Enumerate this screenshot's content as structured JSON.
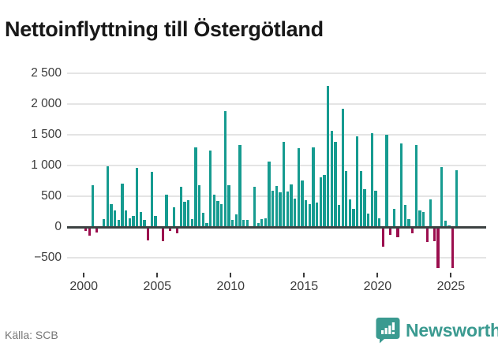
{
  "title": "Nettoinflyttning till Östergötland",
  "source": {
    "label": "Källa: SCB"
  },
  "branding": {
    "name": "Newsworthy",
    "icon": "newsworthy-speech-bubble-chart-icon"
  },
  "colors": {
    "positive_bar": "#169b90",
    "negative_bar": "#9b0e4e",
    "gridline": "#e4e4e4",
    "zero_line": "#3c4242",
    "axis_text": "#3c3c3c",
    "title_text": "#181818",
    "source_text": "#767676",
    "brand_teal": "#3a9a90"
  },
  "chart_data": {
    "type": "bar",
    "title": "Nettoinflyttning till Östergötland",
    "xlabel": "",
    "ylabel": "",
    "legend": "none",
    "grid": "horizontal",
    "ylim": [
      -750,
      2600
    ],
    "ytick_values": [
      2500,
      2000,
      1500,
      1000,
      500,
      0,
      -500
    ],
    "ytick_labels": [
      "2 500",
      "2 000",
      "1 500",
      "1 000",
      "500",
      "0",
      "−500"
    ],
    "xtick_years": [
      2000,
      2005,
      2010,
      2015,
      2020,
      2025
    ],
    "xtick_labels": [
      "2000",
      "2005",
      "2010",
      "2015",
      "2020",
      "2025"
    ],
    "x": [
      "2000 Q1",
      "2000 Q2",
      "2000 Q3",
      "2000 Q4",
      "2001 Q1",
      "2001 Q2",
      "2001 Q3",
      "2001 Q4",
      "2002 Q1",
      "2002 Q2",
      "2002 Q3",
      "2002 Q4",
      "2003 Q1",
      "2003 Q2",
      "2003 Q3",
      "2003 Q4",
      "2004 Q1",
      "2004 Q2",
      "2004 Q3",
      "2004 Q4",
      "2005 Q1",
      "2005 Q2",
      "2005 Q3",
      "2005 Q4",
      "2006 Q1",
      "2006 Q2",
      "2006 Q3",
      "2006 Q4",
      "2007 Q1",
      "2007 Q2",
      "2007 Q3",
      "2007 Q4",
      "2008 Q1",
      "2008 Q2",
      "2008 Q3",
      "2008 Q4",
      "2009 Q1",
      "2009 Q2",
      "2009 Q3",
      "2009 Q4",
      "2010 Q1",
      "2010 Q2",
      "2010 Q3",
      "2010 Q4",
      "2011 Q1",
      "2011 Q2",
      "2011 Q3",
      "2011 Q4",
      "2012 Q1",
      "2012 Q2",
      "2012 Q3",
      "2012 Q4",
      "2013 Q1",
      "2013 Q2",
      "2013 Q3",
      "2013 Q4",
      "2014 Q1",
      "2014 Q2",
      "2014 Q3",
      "2014 Q4",
      "2015 Q1",
      "2015 Q2",
      "2015 Q3",
      "2015 Q4",
      "2016 Q1",
      "2016 Q2",
      "2016 Q3",
      "2016 Q4",
      "2017 Q1",
      "2017 Q2",
      "2017 Q3",
      "2017 Q4",
      "2018 Q1",
      "2018 Q2",
      "2018 Q3",
      "2018 Q4",
      "2019 Q1",
      "2019 Q2",
      "2019 Q3",
      "2019 Q4",
      "2020 Q1",
      "2020 Q2",
      "2020 Q3",
      "2020 Q4",
      "2021 Q1",
      "2021 Q2",
      "2021 Q3",
      "2021 Q4",
      "2022 Q1",
      "2022 Q2",
      "2022 Q3",
      "2022 Q4",
      "2023 Q1",
      "2023 Q2",
      "2023 Q3",
      "2023 Q4",
      "2024 Q1",
      "2024 Q2",
      "2024 Q3",
      "2024 Q4",
      "2025 Q1",
      "2025 Q2"
    ],
    "series": [
      {
        "name": "Nettoinflyttning (personer per kvartal)",
        "values": [
          -50,
          -130,
          680,
          -75,
          10,
          130,
          990,
          375,
          270,
          115,
          710,
          270,
          145,
          180,
          965,
          245,
          115,
          -205,
          900,
          180,
          15,
          -220,
          530,
          -55,
          320,
          -90,
          655,
          415,
          440,
          130,
          1300,
          685,
          230,
          65,
          1250,
          530,
          425,
          375,
          1880,
          685,
          115,
          205,
          1330,
          115,
          110,
          15,
          660,
          65,
          125,
          145,
          1070,
          590,
          670,
          570,
          1390,
          580,
          690,
          460,
          1280,
          760,
          430,
          370,
          1295,
          400,
          810,
          840,
          2300,
          1560,
          1380,
          360,
          1920,
          915,
          450,
          300,
          1480,
          915,
          620,
          220,
          1530,
          595,
          145,
          -310,
          1500,
          -120,
          300,
          -155,
          1355,
          360,
          130,
          -90,
          1330,
          270,
          245,
          -230,
          450,
          -220,
          -655,
          980,
          105,
          30,
          -655,
          920
        ]
      }
    ]
  }
}
